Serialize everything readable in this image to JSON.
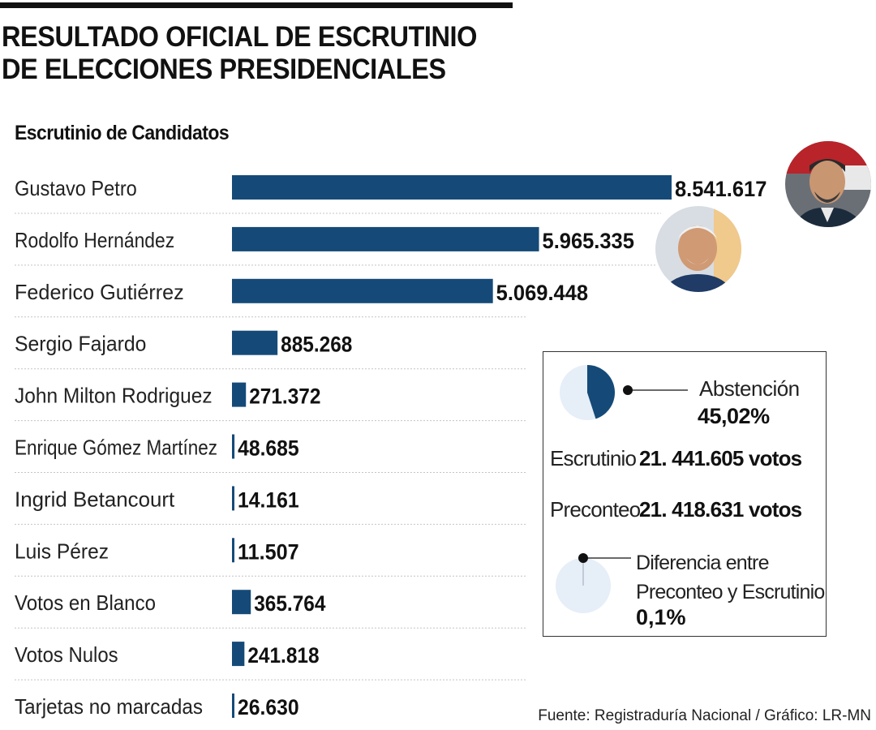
{
  "header": {
    "title_line1": "RESULTADO OFICIAL DE ESCRUTINIO",
    "title_line2": "DE ELECCIONES PRESIDENCIALES",
    "subtitle": "Escrutinio de Candidatos"
  },
  "chart_data": {
    "type": "bar",
    "orientation": "horizontal",
    "title": "Escrutinio de Candidatos",
    "categories": [
      "Gustavo Petro",
      "Rodolfo Hernández",
      "Federico Gutiérrez",
      "Sergio Fajardo",
      "John Milton Rodriguez",
      "Enrique Gómez Martínez",
      "Ingrid Betancourt",
      "Luis Pérez",
      "Votos en Blanco",
      "Votos Nulos",
      "Tarjetas no marcadas"
    ],
    "values": [
      8541617,
      5965335,
      5069448,
      885268,
      271372,
      48685,
      14161,
      11507,
      365764,
      241818,
      26630
    ],
    "value_labels": [
      "8.541.617",
      "5.965.335",
      "5.069.448",
      "885.268",
      "271.372",
      "48.685",
      "14.161",
      "11.507",
      "365.764",
      "241.818",
      "26.630"
    ],
    "xlim": [
      0,
      8541617
    ],
    "bar_color": "#154a78"
  },
  "summary": {
    "abstention_label": "Abstención",
    "abstention_value": "45,02%",
    "abstention_fraction": 0.4502,
    "escrutinio_label": "Escrutinio",
    "escrutinio_value": "21. 441.605 votos",
    "preconteo_label": "Preconteo",
    "preconteo_value": "21. 418.631 votos",
    "difference_label_line1": "Diferencia entre",
    "difference_label_line2": "Preconteo y Escrutinio",
    "difference_value": "0,1%",
    "difference_fraction": 0.001,
    "pie_fill_color": "#154a78",
    "pie_bg_color": "#e6eef8"
  },
  "footer": {
    "source": "Fuente: Registraduría Nacional / Gráfico: LR-MN"
  }
}
